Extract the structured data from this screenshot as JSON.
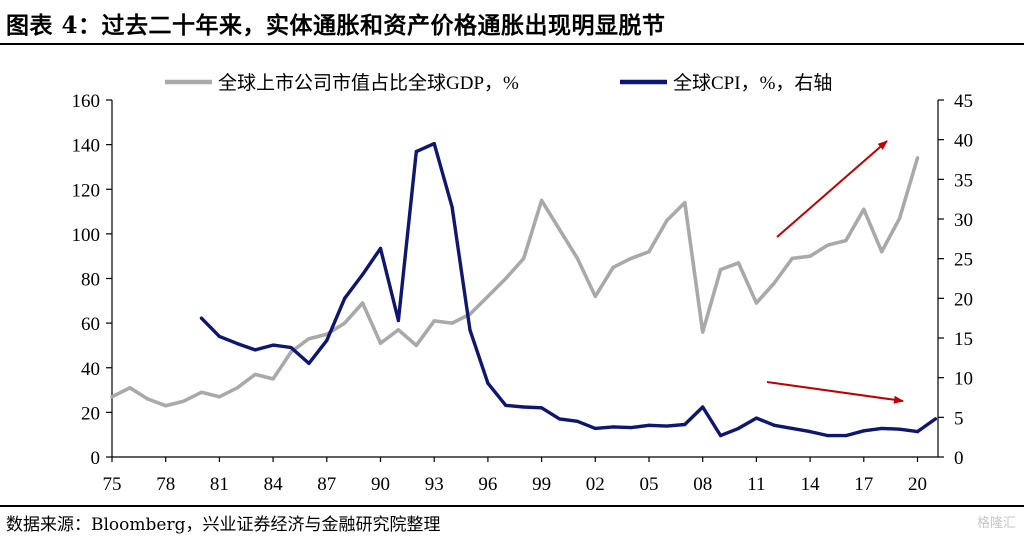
{
  "header": {
    "title": "图表 4：过去二十年来，实体通胀和资产价格通胀出现明显脱节"
  },
  "footer": {
    "source": "数据来源：Bloomberg，兴业证券经济与金融研究院整理",
    "watermark": "格隆汇"
  },
  "chart_data": {
    "type": "line",
    "title": "",
    "xlabel": "",
    "ylabel": "",
    "x_tick_labels": [
      "75",
      "78",
      "81",
      "84",
      "87",
      "90",
      "93",
      "96",
      "99",
      "02",
      "05",
      "08",
      "11",
      "14",
      "17",
      "20"
    ],
    "y_left_ticks": [
      0,
      20,
      40,
      60,
      80,
      100,
      120,
      140,
      160
    ],
    "y_right_ticks": [
      0,
      5,
      10,
      15,
      20,
      25,
      30,
      35,
      40,
      45
    ],
    "ylim_left": [
      0,
      160
    ],
    "ylim_right": [
      0,
      45
    ],
    "xlim": [
      1975,
      2021
    ],
    "grid": false,
    "legend_position": "top",
    "series": [
      {
        "name": "全球上市公司市值占比全球GDP，%",
        "axis": "left",
        "color": "#a9a9a9",
        "x": [
          1975,
          1976,
          1977,
          1978,
          1979,
          1980,
          1981,
          1982,
          1983,
          1984,
          1985,
          1986,
          1987,
          1988,
          1989,
          1990,
          1991,
          1992,
          1993,
          1994,
          1995,
          1996,
          1997,
          1998,
          1999,
          2000,
          2001,
          2002,
          2003,
          2004,
          2005,
          2006,
          2007,
          2008,
          2009,
          2010,
          2011,
          2012,
          2013,
          2014,
          2015,
          2016,
          2017,
          2018,
          2019,
          2020
        ],
        "values": [
          27,
          31,
          26,
          23,
          25,
          29,
          27,
          31,
          37,
          35,
          47,
          53,
          55,
          60,
          69,
          51,
          57,
          50,
          61,
          60,
          64,
          72,
          80,
          89,
          115,
          102,
          89,
          72,
          85,
          89,
          92,
          106,
          114,
          56,
          84,
          87,
          69,
          78,
          89,
          90,
          95,
          97,
          111,
          92,
          107,
          134
        ]
      },
      {
        "name": "全球CPI，%，右轴",
        "axis": "right",
        "color": "#0e1670",
        "x": [
          1980,
          1981,
          1982,
          1983,
          1984,
          1985,
          1986,
          1987,
          1988,
          1989,
          1990,
          1991,
          1992,
          1993,
          1994,
          1995,
          1996,
          1997,
          1998,
          1999,
          2000,
          2001,
          2002,
          2003,
          2004,
          2005,
          2006,
          2007,
          2008,
          2009,
          2010,
          2011,
          2012,
          2013,
          2014,
          2015,
          2016,
          2017,
          2018,
          2019,
          2020,
          2021
        ],
        "values": [
          17.5,
          15.2,
          14.3,
          13.5,
          14.1,
          13.8,
          11.8,
          14.7,
          20.0,
          23.0,
          26.3,
          17.2,
          38.5,
          39.5,
          31.5,
          16.0,
          9.3,
          6.5,
          6.3,
          6.2,
          4.8,
          4.5,
          3.6,
          3.8,
          3.7,
          4.0,
          3.9,
          4.1,
          6.3,
          2.7,
          3.6,
          4.9,
          4.0,
          3.6,
          3.2,
          2.7,
          2.7,
          3.3,
          3.6,
          3.5,
          3.2,
          4.8
        ]
      }
    ],
    "annotations": [
      {
        "type": "arrow",
        "color": "#c00000",
        "direction": "up-right"
      },
      {
        "type": "arrow",
        "color": "#c00000",
        "direction": "right-slightly-down"
      }
    ]
  }
}
